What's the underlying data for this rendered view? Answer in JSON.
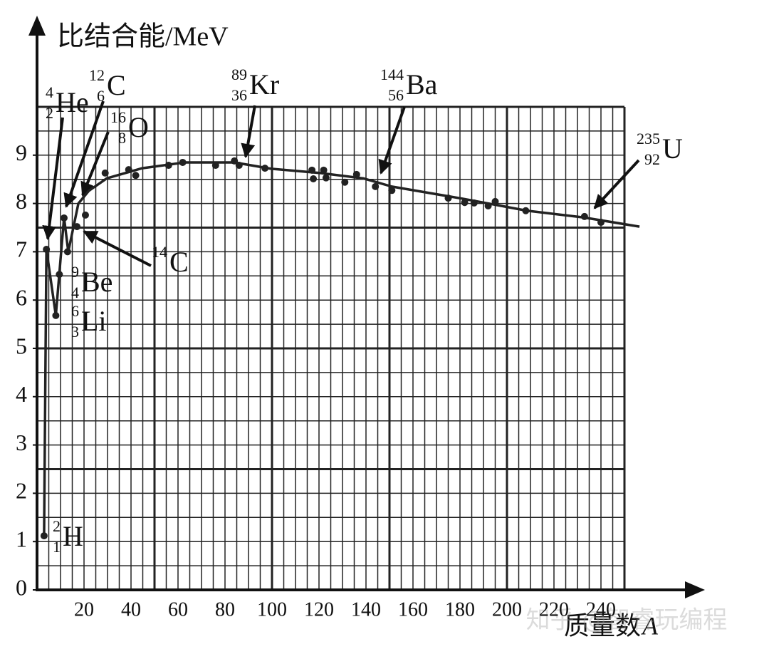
{
  "chart_data": {
    "type": "scatter",
    "y_label": "比结合能/MeV",
    "x_label": "质量数",
    "x_label_var": "A",
    "xlim": [
      0,
      250
    ],
    "ylim": [
      0,
      10
    ],
    "xticks": [
      20,
      40,
      60,
      80,
      100,
      120,
      140,
      160,
      180,
      200,
      220,
      240
    ],
    "yticks": [
      0,
      1,
      2,
      3,
      4,
      5,
      6,
      7,
      8,
      9
    ],
    "xgrid_major": [
      0,
      50,
      100,
      150,
      200,
      250
    ],
    "xgrid_minor": [
      5,
      10,
      15,
      20,
      25,
      30,
      35,
      40,
      45,
      55,
      60,
      65,
      70,
      75,
      80,
      85,
      90,
      95,
      105,
      110,
      115,
      120,
      125,
      130,
      135,
      140,
      145,
      155,
      160,
      165,
      170,
      175,
      180,
      185,
      190,
      195,
      205,
      210,
      215,
      220,
      225,
      230,
      235,
      240,
      245
    ],
    "ygrid_major": [
      0,
      2.5,
      5,
      7.5,
      10
    ],
    "ygrid_minor": [
      0.5,
      1,
      1.5,
      2,
      3,
      3.5,
      4,
      4.5,
      5.5,
      6,
      6.5,
      7,
      8,
      8.5,
      9,
      9.5
    ],
    "color": "#222222",
    "series": [
      {
        "x": [
          3,
          4,
          8,
          9.5,
          11.5,
          13,
          17,
          20.6,
          29,
          39,
          42,
          56,
          62,
          76,
          84,
          86,
          97,
          117,
          117.6,
          122,
          123,
          131,
          136,
          144,
          151,
          175,
          182,
          186,
          192,
          195,
          208,
          233,
          240
        ],
        "values": [
          1.12,
          7.05,
          5.68,
          6.53,
          7.7,
          7.0,
          7.52,
          7.76,
          8.63,
          8.7,
          8.58,
          8.79,
          8.85,
          8.79,
          8.88,
          8.79,
          8.73,
          8.69,
          8.51,
          8.69,
          8.53,
          8.44,
          8.6,
          8.35,
          8.27,
          8.11,
          8.02,
          8.01,
          7.95,
          8.04,
          7.85,
          7.73,
          7.61
        ]
      }
    ],
    "curve": {
      "x": [
        3,
        4,
        8,
        11.5,
        13.3,
        17.6,
        22,
        29.7,
        44.8,
        63,
        84,
        99.4,
        120.6,
        138.8,
        151,
        181,
        208.5,
        232.7,
        256.4
      ],
      "values": [
        1.12,
        7.05,
        5.68,
        7.71,
        7.0,
        8.0,
        8.26,
        8.52,
        8.73,
        8.85,
        8.85,
        8.72,
        8.63,
        8.52,
        8.35,
        8.1,
        7.85,
        7.71,
        7.52
      ]
    },
    "annotations": [
      {
        "mass": "4",
        "number": "2",
        "symbol": "He"
      },
      {
        "mass": "12",
        "number": "6",
        "symbol": "C"
      },
      {
        "mass": "16",
        "number": "8",
        "symbol": "O"
      },
      {
        "mass": "14",
        "symbol": "C"
      },
      {
        "mass": "9",
        "number": "4",
        "symbol": "Be"
      },
      {
        "mass": "6",
        "number": "3",
        "symbol": "Li"
      },
      {
        "mass": "2",
        "number": "1",
        "symbol": "H"
      },
      {
        "mass": "89",
        "number": "36",
        "symbol": "Kr"
      },
      {
        "mass": "144",
        "number": "56",
        "symbol": "Ba"
      },
      {
        "mass": "235",
        "number": "92",
        "symbol": "U"
      }
    ],
    "watermark": "知乎 @智睿玩编程"
  }
}
